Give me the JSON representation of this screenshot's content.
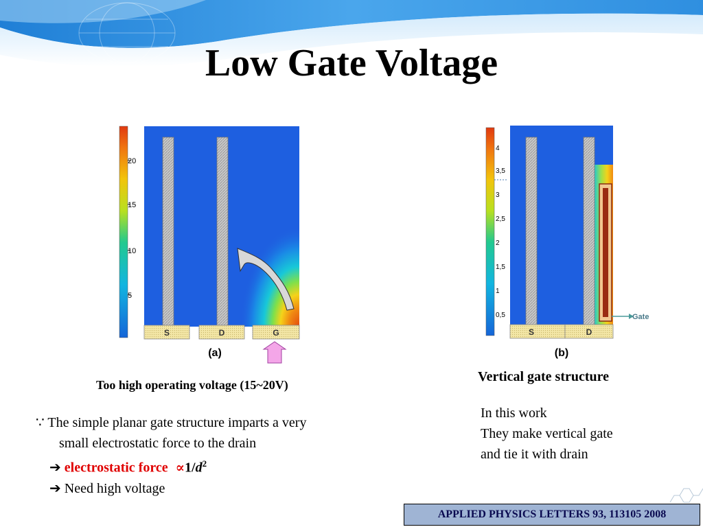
{
  "slide": {
    "title": "Low Gate Voltage",
    "fig_a": {
      "panel_label": "(a)",
      "colorbar_ticks": [
        "20",
        "15",
        "10",
        "5"
      ],
      "contacts": [
        "S",
        "D",
        "G"
      ],
      "caption": "Too high operating voltage (15~20V)"
    },
    "fig_b": {
      "panel_label": "(b)",
      "colorbar_ticks": [
        "4",
        "3,5",
        "3",
        "2,5",
        "2",
        "1,5",
        "1",
        "0,5"
      ],
      "contacts": [
        "S",
        "D"
      ],
      "gate_label": "Gate",
      "caption": "Vertical gate structure"
    },
    "left_text": {
      "bullet_symbol": "∵",
      "line1": "The simple planar gate structure imparts a very",
      "line2": "small electrostatic force to the drain",
      "arrow": "➔",
      "force_label": "electrostatic force",
      "prop_symbol": "∝",
      "inverse": "1/",
      "distance_var": "d",
      "exponent": "2",
      "line4": "Need high voltage"
    },
    "right_text": {
      "line1": "In this work",
      "line2": "They make vertical gate",
      "line3": "and tie it with drain"
    },
    "citation": "APPLIED PHYSICS LETTERS 93, 113105 2008"
  }
}
